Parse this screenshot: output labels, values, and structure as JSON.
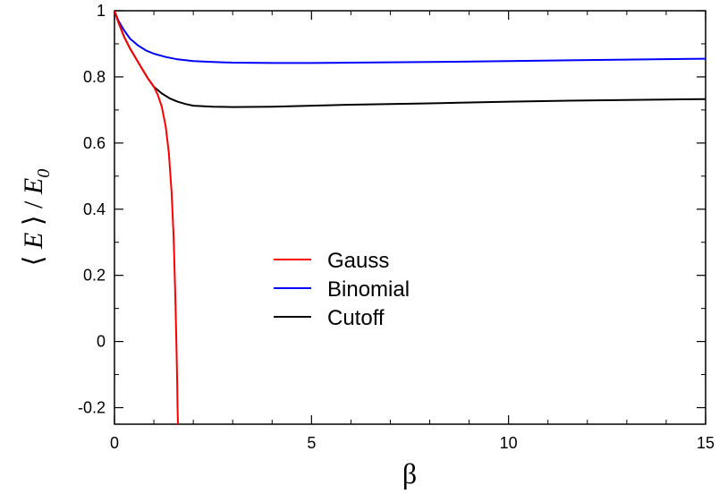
{
  "chart_data": {
    "type": "line",
    "xlabel": "β",
    "ylabel": "⟨ E ⟩ / E0",
    "xlim": [
      0,
      15
    ],
    "ylim": [
      -0.25,
      1
    ],
    "x_ticks": [
      0,
      5,
      10,
      15
    ],
    "y_ticks": [
      -0.2,
      0,
      0.2,
      0.4,
      0.6,
      0.8,
      1
    ],
    "x_tick_labels": [
      "0",
      "5",
      "10",
      "15"
    ],
    "y_tick_labels": [
      "-0.2",
      "0",
      "0.2",
      "0.4",
      "0.6",
      "0.8",
      "1"
    ],
    "grid": false,
    "legend_position": "center",
    "series": [
      {
        "name": "Gauss",
        "color": "#ff0000",
        "x": [
          0,
          0.1,
          0.25,
          0.4,
          0.55,
          0.7,
          0.85,
          1.0,
          1.1,
          1.2,
          1.3,
          1.38,
          1.45,
          1.5,
          1.54,
          1.57,
          1.59,
          1.6,
          1.61,
          1.615
        ],
        "y": [
          1.0,
          0.965,
          0.92,
          0.885,
          0.855,
          0.825,
          0.795,
          0.77,
          0.745,
          0.71,
          0.65,
          0.57,
          0.45,
          0.32,
          0.15,
          0.0,
          -0.12,
          -0.2,
          -0.24,
          -0.25
        ]
      },
      {
        "name": "Binomial",
        "color": "#0000ff",
        "x": [
          0,
          0.1,
          0.25,
          0.4,
          0.6,
          0.8,
          1.0,
          1.3,
          1.6,
          2.0,
          2.5,
          3.0,
          4.0,
          5.0,
          6.0,
          8.0,
          10.0,
          12.0,
          15.0
        ],
        "y": [
          1.0,
          0.97,
          0.94,
          0.915,
          0.895,
          0.88,
          0.87,
          0.86,
          0.853,
          0.848,
          0.845,
          0.843,
          0.842,
          0.842,
          0.843,
          0.845,
          0.848,
          0.851,
          0.855
        ]
      },
      {
        "name": "Cutoff",
        "color": "#000000",
        "x": [
          0,
          0.1,
          0.25,
          0.4,
          0.55,
          0.7,
          0.85,
          1.0,
          1.2,
          1.4,
          1.6,
          1.8,
          2.0,
          2.5,
          3.0,
          4.0,
          5.0,
          6.0,
          8.0,
          10.0,
          12.0,
          15.0
        ],
        "y": [
          1.0,
          0.965,
          0.92,
          0.885,
          0.855,
          0.825,
          0.795,
          0.77,
          0.75,
          0.735,
          0.725,
          0.718,
          0.713,
          0.71,
          0.709,
          0.71,
          0.713,
          0.716,
          0.72,
          0.725,
          0.729,
          0.733
        ]
      }
    ]
  }
}
